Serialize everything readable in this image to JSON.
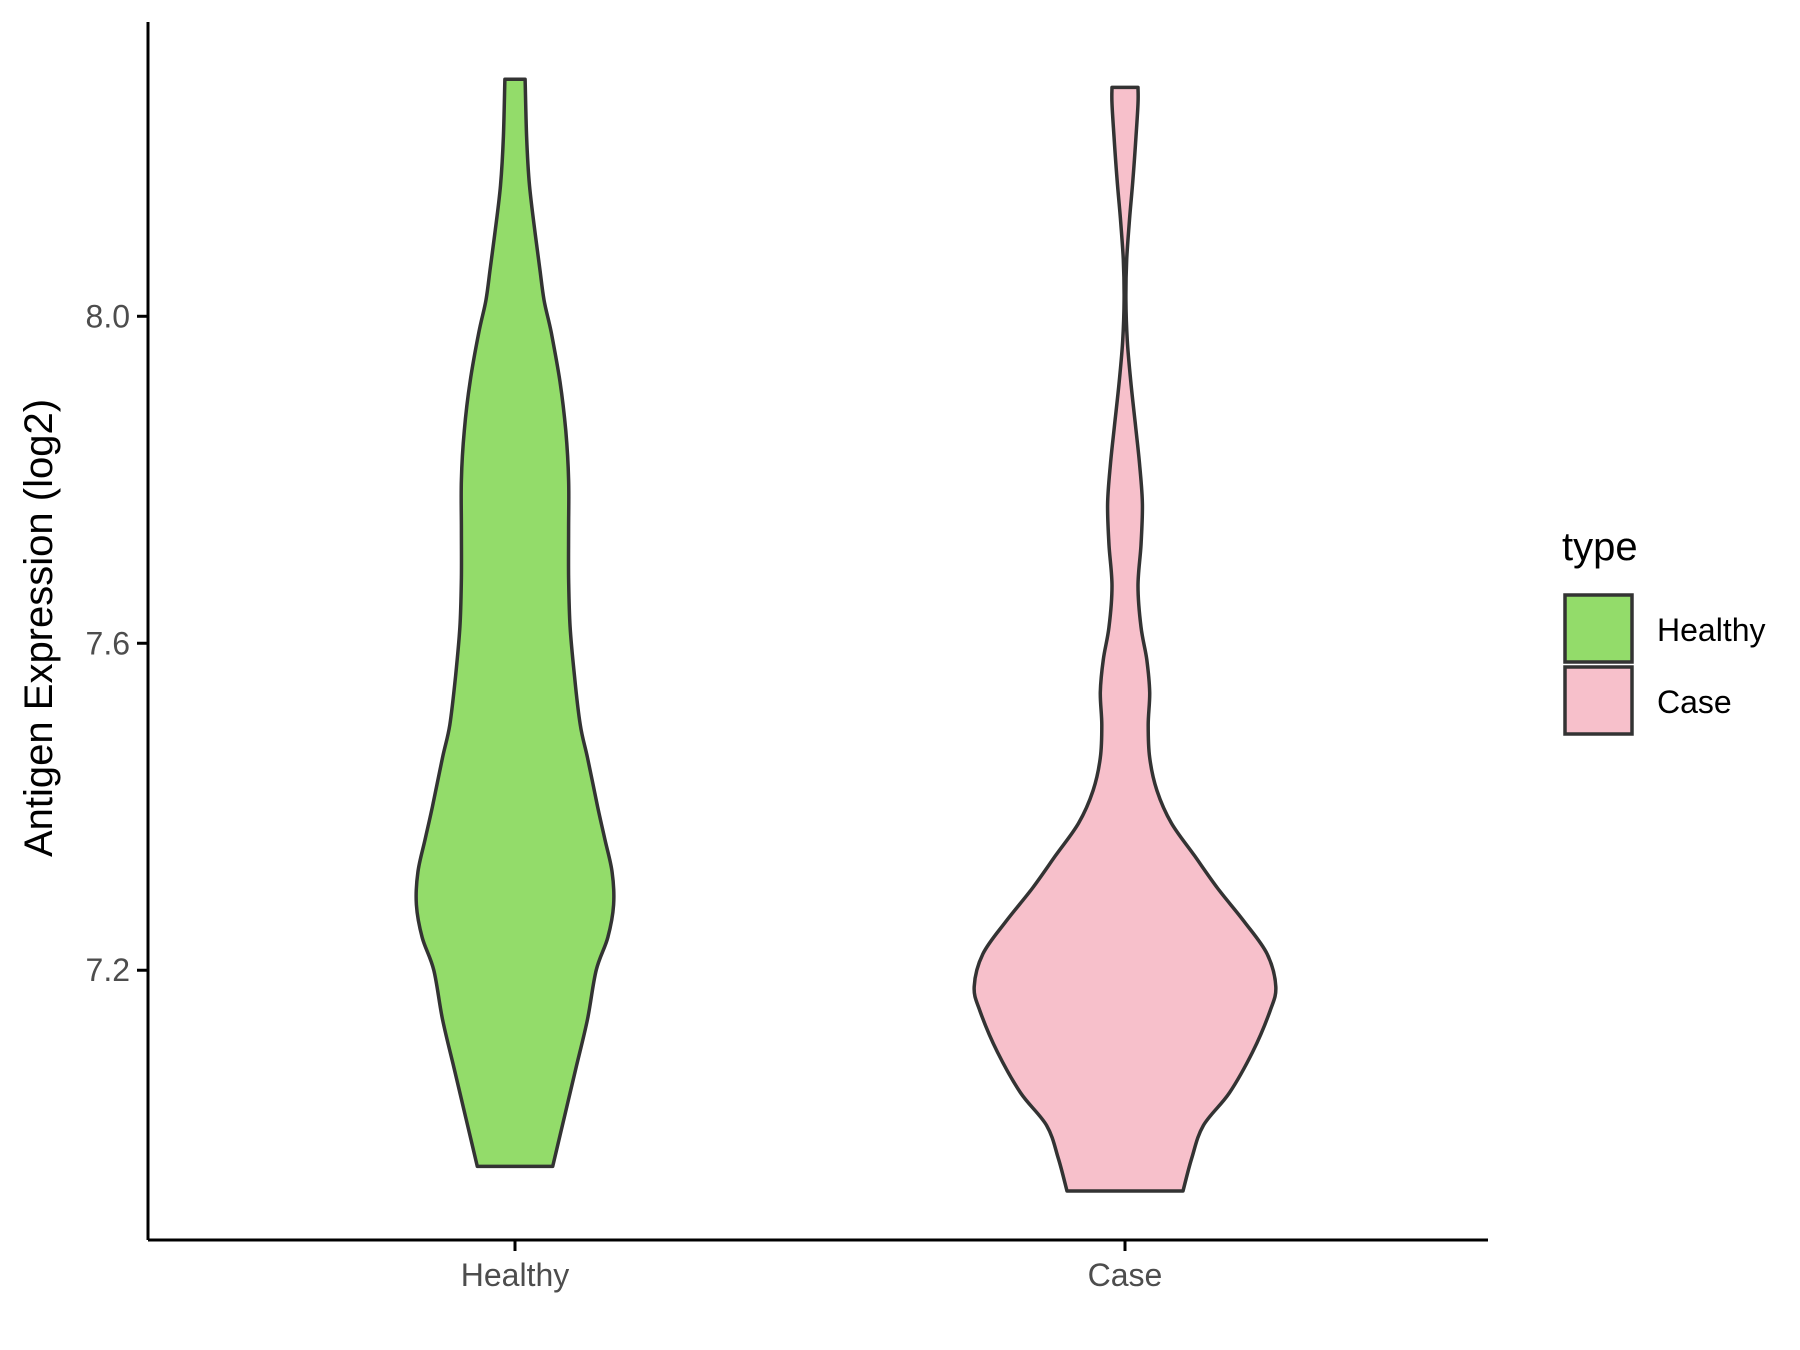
{
  "chart_data": {
    "type": "violin",
    "title": "",
    "xlabel": "",
    "ylabel": "Antigen Expression (log2)",
    "categories": [
      "Healthy",
      "Case"
    ],
    "ylim": [
      6.87,
      8.36
    ],
    "yticks": [
      7.2,
      7.6,
      8.0
    ],
    "ytick_labels": [
      "7.2",
      "7.6",
      "8.0"
    ],
    "grid": false,
    "legend": {
      "title": "type",
      "position": "right",
      "entries": [
        "Healthy",
        "Case"
      ]
    },
    "colors": {
      "Healthy": "#93DC6A",
      "Case": "#F7C0CB",
      "outline": "#333333",
      "axis": "#000000"
    },
    "series": [
      {
        "name": "Healthy",
        "min": 6.96,
        "max": 8.29,
        "density_profile": [
          [
            6.96,
            0.13
          ],
          [
            7.02,
            0.17
          ],
          [
            7.08,
            0.21
          ],
          [
            7.14,
            0.25
          ],
          [
            7.2,
            0.28
          ],
          [
            7.24,
            0.32
          ],
          [
            7.28,
            0.34
          ],
          [
            7.32,
            0.335
          ],
          [
            7.36,
            0.31
          ],
          [
            7.4,
            0.285
          ],
          [
            7.46,
            0.25
          ],
          [
            7.5,
            0.225
          ],
          [
            7.56,
            0.205
          ],
          [
            7.62,
            0.19
          ],
          [
            7.68,
            0.185
          ],
          [
            7.74,
            0.185
          ],
          [
            7.8,
            0.185
          ],
          [
            7.86,
            0.175
          ],
          [
            7.92,
            0.155
          ],
          [
            7.98,
            0.125
          ],
          [
            8.02,
            0.1
          ],
          [
            8.06,
            0.085
          ],
          [
            8.1,
            0.07
          ],
          [
            8.16,
            0.05
          ],
          [
            8.22,
            0.04
          ],
          [
            8.29,
            0.035
          ]
        ]
      },
      {
        "name": "Case",
        "min": 6.93,
        "max": 8.28,
        "density_profile": [
          [
            6.93,
            0.2
          ],
          [
            6.97,
            0.23
          ],
          [
            7.01,
            0.27
          ],
          [
            7.05,
            0.36
          ],
          [
            7.1,
            0.44
          ],
          [
            7.15,
            0.5
          ],
          [
            7.18,
            0.52
          ],
          [
            7.22,
            0.49
          ],
          [
            7.26,
            0.41
          ],
          [
            7.3,
            0.32
          ],
          [
            7.34,
            0.24
          ],
          [
            7.38,
            0.16
          ],
          [
            7.42,
            0.11
          ],
          [
            7.46,
            0.085
          ],
          [
            7.5,
            0.08
          ],
          [
            7.54,
            0.085
          ],
          [
            7.58,
            0.075
          ],
          [
            7.62,
            0.055
          ],
          [
            7.67,
            0.045
          ],
          [
            7.72,
            0.055
          ],
          [
            7.77,
            0.06
          ],
          [
            7.82,
            0.05
          ],
          [
            7.87,
            0.035
          ],
          [
            7.92,
            0.02
          ],
          [
            7.97,
            0.008
          ],
          [
            8.02,
            0.003
          ],
          [
            8.07,
            0.006
          ],
          [
            8.12,
            0.016
          ],
          [
            8.17,
            0.028
          ],
          [
            8.22,
            0.038
          ],
          [
            8.26,
            0.045
          ],
          [
            8.28,
            0.045
          ]
        ]
      }
    ]
  }
}
